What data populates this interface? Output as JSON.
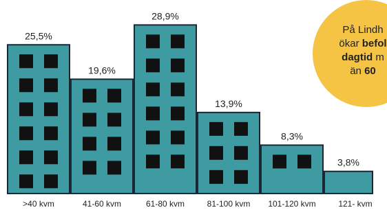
{
  "chart_data": {
    "type": "building-bar",
    "categories": [
      ">40 kvm",
      "41-60 kvm",
      "61-80 kvm",
      "81-100 kvm",
      "101-120 kvm",
      "121- kvm"
    ],
    "values": [
      25.5,
      19.6,
      28.9,
      13.9,
      8.3,
      3.8
    ],
    "value_labels": [
      "25,5%",
      "19,6%",
      "28,9%",
      "13,9%",
      "8,3%",
      "3,8%"
    ],
    "color": "#3e9ba1",
    "ylim": [
      0,
      30
    ],
    "annotation": [
      [
        {
          "text": "På Lindh"
        }
      ],
      [
        {
          "text": "ökar "
        },
        {
          "text": "befol",
          "bold": true
        }
      ],
      [
        {
          "text": "dagtid",
          "bold": true
        },
        {
          "text": " m"
        }
      ],
      [
        {
          "text": "än "
        },
        {
          "text": "60",
          "bold": true
        }
      ]
    ]
  }
}
